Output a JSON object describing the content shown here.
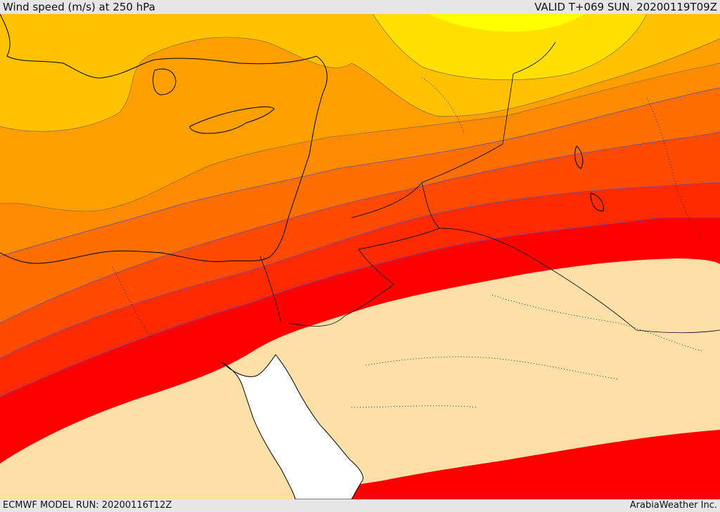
{
  "header": {
    "title": "Wind speed (m/s) at 250 hPa",
    "valid_time": "VALID T+069 SUN. 20200119T09Z"
  },
  "footer": {
    "model_run": "ECMWF MODEL RUN: 20200116T12Z",
    "credit": "ArabiaWeather Inc."
  },
  "map": {
    "field": "wind speed",
    "level": "250 hPa",
    "fill_colors": [
      "#fde0a8",
      "#ffff00",
      "#ffe000",
      "#ffc200",
      "#ffa000",
      "#ff8c00",
      "#ff6e00",
      "#ff4a00",
      "#ff2a00",
      "#ff0000"
    ],
    "sea_color": "#ffffff",
    "contour_color": "#6a4aa0",
    "border_color": "#000000"
  }
}
